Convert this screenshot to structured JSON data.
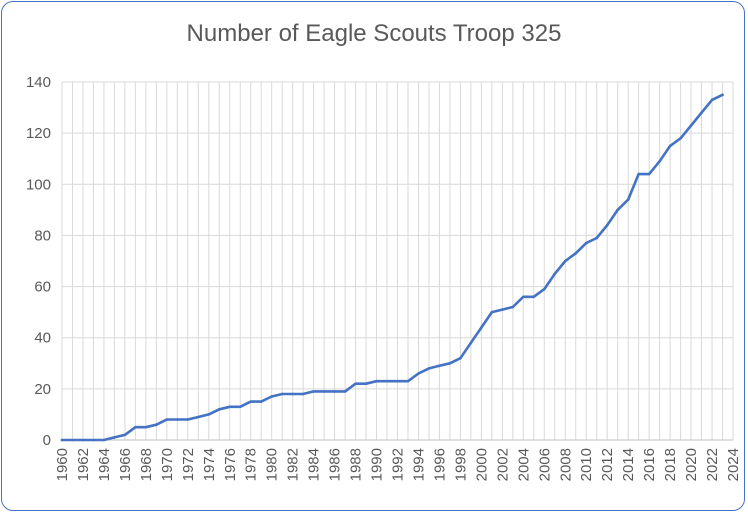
{
  "chart_data": {
    "type": "line",
    "title": "Number of Eagle Scouts Troop 325",
    "xlabel": "",
    "ylabel": "",
    "xlim": [
      1960,
      2024
    ],
    "ylim": [
      0,
      140
    ],
    "yticks": [
      0,
      20,
      40,
      60,
      80,
      100,
      120,
      140
    ],
    "xticks": [
      1960,
      1962,
      1964,
      1966,
      1968,
      1970,
      1972,
      1974,
      1976,
      1978,
      1980,
      1982,
      1984,
      1986,
      1988,
      1990,
      1992,
      1994,
      1996,
      1998,
      2000,
      2002,
      2004,
      2006,
      2008,
      2010,
      2012,
      2014,
      2016,
      2018,
      2020,
      2022,
      2024
    ],
    "grid": true,
    "legend": "none",
    "line_color": "#4472c4",
    "series": [
      {
        "x": [
          1960,
          1961,
          1962,
          1963,
          1964,
          1965,
          1966,
          1967,
          1968,
          1969,
          1970,
          1971,
          1972,
          1973,
          1974,
          1975,
          1976,
          1977,
          1978,
          1979,
          1980,
          1981,
          1982,
          1983,
          1984,
          1985,
          1986,
          1987,
          1988,
          1989,
          1990,
          1991,
          1992,
          1993,
          1994,
          1995,
          1996,
          1997,
          1998,
          1999,
          2000,
          2001,
          2002,
          2003,
          2004,
          2005,
          2006,
          2007,
          2008,
          2009,
          2010,
          2011,
          2012,
          2013,
          2014,
          2015,
          2016,
          2017,
          2018,
          2019,
          2020,
          2021,
          2022,
          2023
        ],
        "values": [
          0,
          0,
          0,
          0,
          0,
          1,
          2,
          5,
          5,
          6,
          8,
          8,
          8,
          9,
          10,
          12,
          13,
          13,
          15,
          15,
          17,
          18,
          18,
          18,
          19,
          19,
          19,
          19,
          22,
          22,
          23,
          23,
          23,
          23,
          26,
          28,
          29,
          30,
          32,
          38,
          44,
          50,
          51,
          52,
          56,
          56,
          59,
          65,
          70,
          73,
          77,
          79,
          84,
          90,
          94,
          104,
          104,
          109,
          115,
          118,
          123,
          128,
          133,
          135
        ]
      }
    ]
  }
}
